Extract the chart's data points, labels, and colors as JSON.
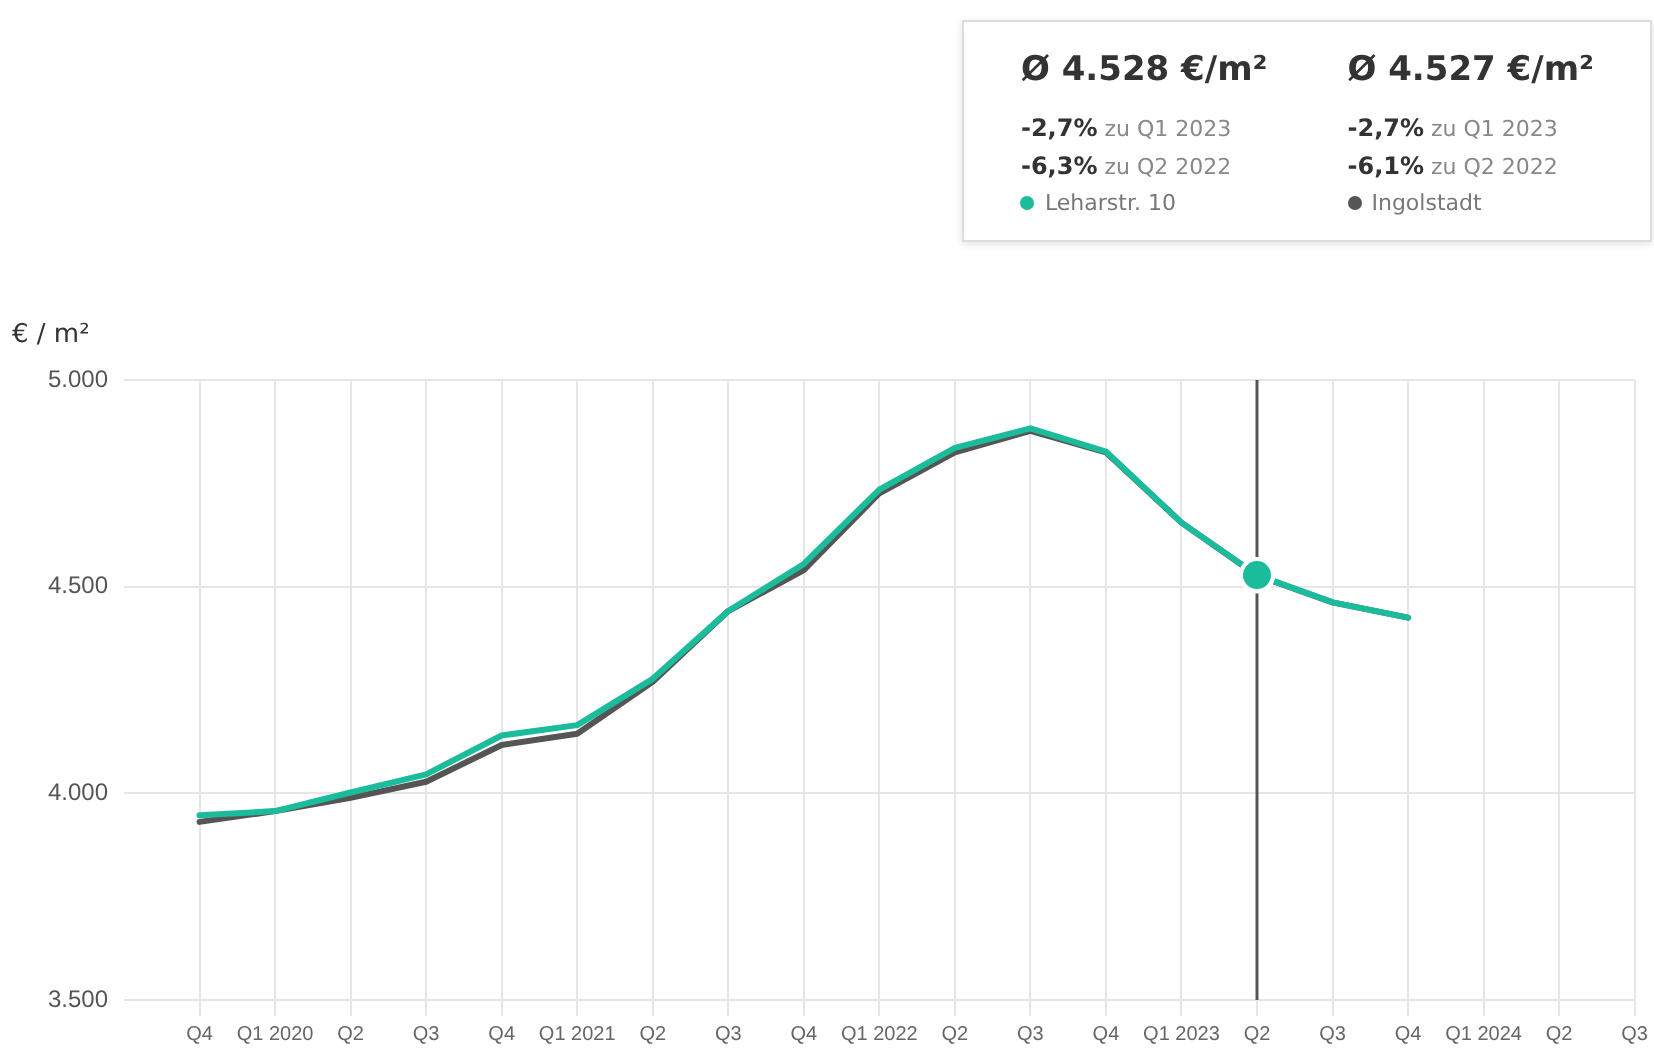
{
  "chart_data": {
    "type": "line",
    "ylabel": "€ / m²",
    "x": [
      "2019-10",
      "2020-01",
      "2020-04",
      "2020-07",
      "2020-10",
      "2021-01",
      "2021-04",
      "2021-07",
      "2021-10",
      "2022-01",
      "2022-04",
      "2022-07",
      "2022-10",
      "2023-01",
      "2023-04",
      "2023-07",
      "2023-10"
    ],
    "series": [
      {
        "name": "Leharstr. 10",
        "color": "#1abc9c",
        "values": [
          3947,
          3957,
          4002,
          4046,
          4140,
          4165,
          4277,
          4441,
          4555,
          4735,
          4836,
          4883,
          4827,
          4655,
          4528,
          4462,
          4425
        ]
      },
      {
        "name": "Ingolstadt",
        "color": "#555555",
        "values": [
          3931,
          3957,
          3989,
          4028,
          4117,
          4144,
          4270,
          4441,
          4540,
          4726,
          4825,
          4877,
          4825,
          4655,
          4527,
          4462,
          4425
        ]
      }
    ],
    "xlim": [
      "2019-07",
      "2024-07"
    ],
    "xticks": [
      {
        "value": "2019-10",
        "label": "Q4"
      },
      {
        "value": "2020-01",
        "label": "Q1 2020"
      },
      {
        "value": "2020-04",
        "label": "Q2"
      },
      {
        "value": "2020-07",
        "label": "Q3"
      },
      {
        "value": "2020-10",
        "label": "Q4"
      },
      {
        "value": "2021-01",
        "label": "Q1 2021"
      },
      {
        "value": "2021-04",
        "label": "Q2"
      },
      {
        "value": "2021-07",
        "label": "Q3"
      },
      {
        "value": "2021-10",
        "label": "Q4"
      },
      {
        "value": "2022-01",
        "label": "Q1 2022"
      },
      {
        "value": "2022-04",
        "label": "Q2"
      },
      {
        "value": "2022-07",
        "label": "Q3"
      },
      {
        "value": "2022-10",
        "label": "Q4"
      },
      {
        "value": "2023-01",
        "label": "Q1 2023"
      },
      {
        "value": "2023-04",
        "label": "Q2"
      },
      {
        "value": "2023-07",
        "label": "Q3"
      },
      {
        "value": "2023-10",
        "label": "Q4"
      },
      {
        "value": "2024-01",
        "label": "Q1 2024"
      },
      {
        "value": "2024-04",
        "label": "Q2"
      },
      {
        "value": "2024-07",
        "label": "Q3"
      }
    ],
    "ylim": [
      3500,
      5000
    ],
    "yticks": [
      {
        "value": 3500,
        "label": "3.500"
      },
      {
        "value": 4000,
        "label": "4.000"
      },
      {
        "value": 4500,
        "label": "4.500"
      },
      {
        "value": 5000,
        "label": "5.000"
      }
    ],
    "grid": true,
    "legend": "top right",
    "ref_lines": [
      {
        "axis": "x",
        "value": "2023-04",
        "color": "#555555"
      }
    ],
    "annotations": [
      "Ø 4.528 €/m²",
      "-2,7% zu Q1 2023",
      "-6,3% zu Q2 2022",
      "Ø 4.527 €/m²",
      "-2,7% zu Q1 2023",
      "-6,1% zu Q2 2022"
    ]
  }
}
